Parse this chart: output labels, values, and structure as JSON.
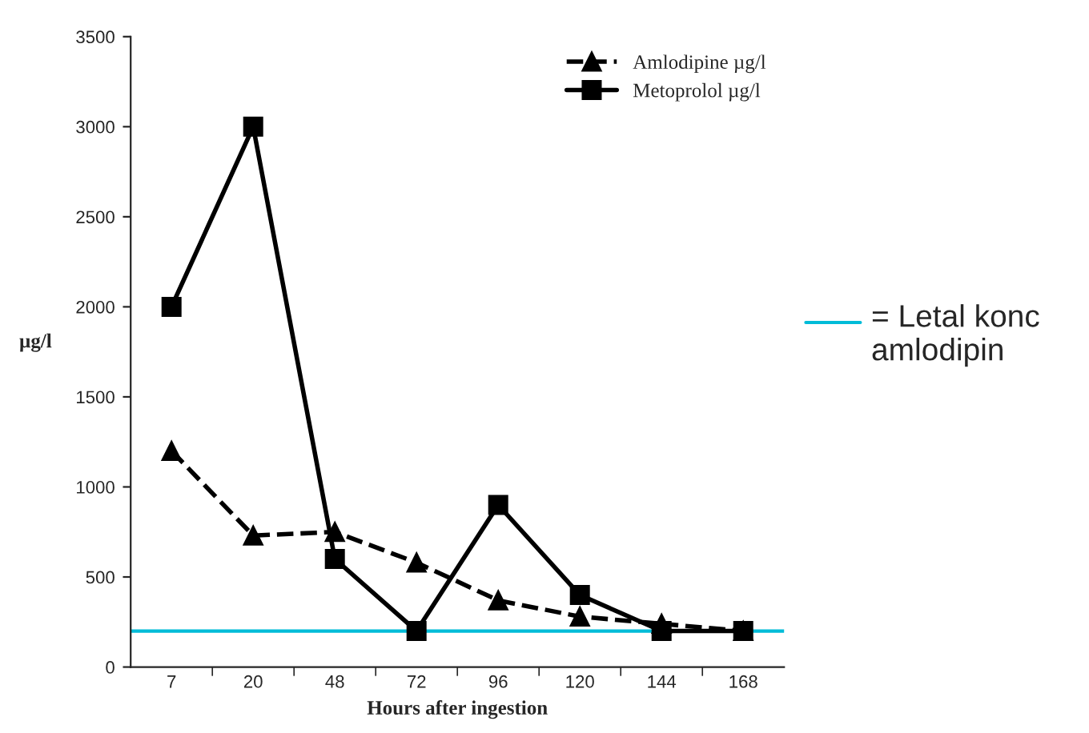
{
  "chart_data": {
    "type": "line",
    "xlabel": "Hours after ingestion",
    "ylabel": "µg/l",
    "categories": [
      "7",
      "20",
      "48",
      "72",
      "96",
      "120",
      "144",
      "168"
    ],
    "series": [
      {
        "name": "Amlodipine µg/l",
        "color": "#000000",
        "marker": "triangle",
        "line_style": "dashed",
        "values": [
          1200,
          730,
          750,
          580,
          370,
          280,
          240,
          200
        ]
      },
      {
        "name": "Metoprolol µg/l",
        "color": "#000000",
        "marker": "square",
        "line_style": "solid",
        "values": [
          2000,
          3000,
          600,
          200,
          900,
          400,
          200,
          200
        ]
      }
    ],
    "ylim": [
      0,
      3500
    ],
    "yticks": [
      0,
      500,
      1000,
      1500,
      2000,
      2500,
      3000,
      3500
    ],
    "ref_lines": [
      {
        "axis": "y",
        "value": 200,
        "label": "= Letal konc amlodipin",
        "color": "#00bcd8"
      }
    ],
    "legend": "top right",
    "grid": false
  }
}
